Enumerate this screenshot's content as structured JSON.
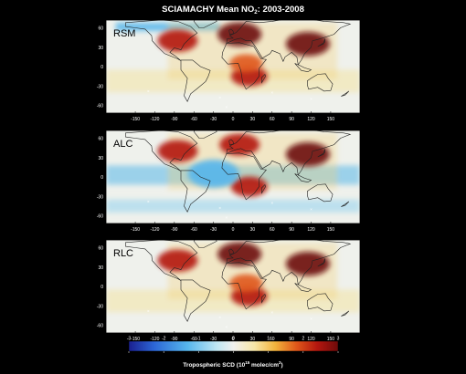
{
  "title": {
    "pre": "SCIAMACHY Mean NO",
    "sub": "2",
    "post": ": 2003-2008"
  },
  "colorbar_label": {
    "pre": "Tropospheric SCD (10",
    "sup": "15",
    "post": " molec/cm",
    "sup2": "2",
    "close": ")"
  },
  "colors": {
    "background": "#000000",
    "scale": [
      "#1a1f8f",
      "#2c66d6",
      "#56b6ec",
      "#bfe6f2",
      "#f0f0ee",
      "#f6e6a8",
      "#f2b33c",
      "#e0581a",
      "#b4170f",
      "#6d0a0a"
    ]
  },
  "chart_data": [
    {
      "type": "heatmap",
      "map_projection": "equirectangular",
      "panel_label": "RSM",
      "x_ticks": [
        "-150",
        "-120",
        "-90",
        "-60",
        "-30",
        "0",
        "30",
        "60",
        "90",
        "120",
        "150"
      ],
      "y_ticks": [
        "60",
        "30",
        "0",
        "-30",
        "-60"
      ],
      "xlim": [
        -180,
        180
      ],
      "ylim": [
        -70,
        70
      ],
      "colorbar": {
        "range": [
          -3,
          3
        ],
        "ticks": [
          "-3",
          "-2",
          "-1",
          "0",
          "1",
          "2",
          "3"
        ]
      },
      "hotspots": [
        {
          "region": "Eastern USA",
          "lon": -85,
          "lat": 40,
          "value": 2.5
        },
        {
          "region": "Europe",
          "lon": 10,
          "lat": 50,
          "value": 3
        },
        {
          "region": "East China",
          "lon": 115,
          "lat": 35,
          "value": 3
        },
        {
          "region": "Southern Africa",
          "lon": 25,
          "lat": -15,
          "value": 2
        },
        {
          "region": "Central Africa",
          "lon": 20,
          "lat": 5,
          "value": 1.5
        }
      ]
    },
    {
      "type": "heatmap",
      "map_projection": "equirectangular",
      "panel_label": "ALC",
      "x_ticks": [
        "-150",
        "-120",
        "-90",
        "-60",
        "-30",
        "0",
        "30",
        "60",
        "90",
        "120",
        "150"
      ],
      "y_ticks": [
        "60",
        "30",
        "0",
        "-30",
        "-60"
      ],
      "xlim": [
        -180,
        180
      ],
      "ylim": [
        -70,
        70
      ],
      "colorbar": {
        "range": [
          -3,
          3
        ],
        "ticks": [
          "-3",
          "-2",
          "-1",
          "0",
          "1",
          "2",
          "3"
        ]
      },
      "hotspots": [
        {
          "region": "Eastern USA",
          "lon": -85,
          "lat": 40,
          "value": 2.5
        },
        {
          "region": "Europe",
          "lon": 10,
          "lat": 50,
          "value": 2.5
        },
        {
          "region": "East China",
          "lon": 115,
          "lat": 35,
          "value": 3
        },
        {
          "region": "Southern Africa",
          "lon": 25,
          "lat": -15,
          "value": 2
        },
        {
          "region": "Tropical oceans",
          "lon": -30,
          "lat": 5,
          "value": -1.5
        }
      ]
    },
    {
      "type": "heatmap",
      "map_projection": "equirectangular",
      "panel_label": "RLC",
      "x_ticks": [
        "-150",
        "-120",
        "-90",
        "-60",
        "-30",
        "0",
        "30",
        "60",
        "90",
        "120",
        "150"
      ],
      "y_ticks": [
        "60",
        "30",
        "0",
        "-30",
        "-60"
      ],
      "xlim": [
        -180,
        180
      ],
      "ylim": [
        -70,
        70
      ],
      "colorbar": {
        "range": [
          -3,
          3
        ],
        "ticks": [
          "-3",
          "-2",
          "-1",
          "0",
          "1",
          "2",
          "3"
        ]
      },
      "hotspots": [
        {
          "region": "Eastern USA",
          "lon": -85,
          "lat": 40,
          "value": 2.5
        },
        {
          "region": "Europe",
          "lon": 10,
          "lat": 50,
          "value": 3
        },
        {
          "region": "East China",
          "lon": 115,
          "lat": 35,
          "value": 3
        },
        {
          "region": "Southern Africa",
          "lon": 25,
          "lat": -15,
          "value": 2
        },
        {
          "region": "Central Africa",
          "lon": 20,
          "lat": 5,
          "value": 1.5
        }
      ]
    }
  ]
}
